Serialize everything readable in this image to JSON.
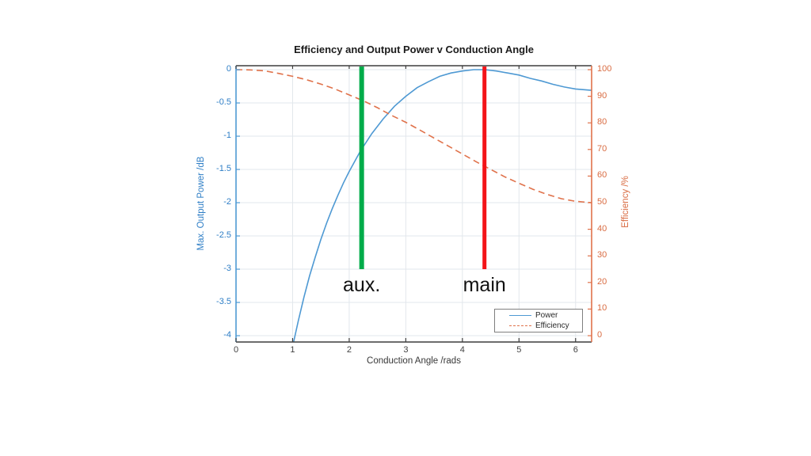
{
  "page": {
    "background": "#ffffff"
  },
  "chart_data": {
    "type": "line",
    "title": "Efficiency and Output Power v Conduction Angle",
    "xlabel": "Conduction Angle /rads",
    "ylabel_left": "Max. Output Power /dB",
    "ylabel_right": "Efficiency /%",
    "xlim": [
      0,
      6.2832
    ],
    "xticks": [
      0,
      1,
      2,
      3,
      4,
      5,
      6
    ],
    "ylim_left": [
      -4.095,
      0.06
    ],
    "yticks_left": [
      0,
      -0.5,
      -1,
      -1.5,
      -2,
      -2.5,
      -3,
      -3.5,
      -4
    ],
    "ytick_labels_left": [
      "0",
      "-0.5",
      "-1",
      "-1.5",
      "-2",
      "-2.5",
      "-3",
      "-3.5",
      "-4"
    ],
    "ylim_right": [
      -2.38,
      101.49
    ],
    "yticks_right": [
      100,
      90,
      80,
      70,
      60,
      50,
      40,
      30,
      20,
      10,
      0
    ],
    "grid": true,
    "legend": {
      "position": "bottom-right"
    },
    "series": [
      {
        "name": "Power",
        "axis": "left",
        "color": "#4e99d3",
        "style": "solid",
        "x": [
          1.0,
          1.1,
          1.2,
          1.3,
          1.4,
          1.5,
          1.6,
          1.7,
          1.8,
          1.9,
          2.0,
          2.2,
          2.4,
          2.6,
          2.8,
          3.0,
          3.2,
          3.4,
          3.6,
          3.8,
          4.0,
          4.2,
          4.4,
          4.6,
          4.8,
          5.0,
          5.2,
          5.4,
          5.6,
          5.8,
          6.0,
          6.28
        ],
        "y": [
          -4.16,
          -3.78,
          -3.42,
          -3.1,
          -2.82,
          -2.55,
          -2.31,
          -2.09,
          -1.89,
          -1.7,
          -1.53,
          -1.22,
          -0.96,
          -0.74,
          -0.55,
          -0.4,
          -0.27,
          -0.18,
          -0.1,
          -0.05,
          -0.02,
          0.0,
          0.0,
          -0.02,
          -0.05,
          -0.08,
          -0.13,
          -0.17,
          -0.22,
          -0.26,
          -0.29,
          -0.31
        ]
      },
      {
        "name": "Efficiency",
        "axis": "right",
        "color": "#e0724b",
        "style": "dashed",
        "x": [
          0,
          0.25,
          0.5,
          0.75,
          1.0,
          1.25,
          1.5,
          1.75,
          2.0,
          2.25,
          2.5,
          2.75,
          3.0,
          3.25,
          3.5,
          3.75,
          4.0,
          4.25,
          4.5,
          4.75,
          5.0,
          5.25,
          5.5,
          5.75,
          6.0,
          6.28
        ],
        "y": [
          100,
          99.9,
          99.6,
          98.6,
          97.5,
          96.2,
          94.6,
          92.7,
          90.5,
          88.3,
          85.7,
          82.8,
          80.2,
          77.3,
          74.3,
          71.3,
          68.3,
          65.3,
          62.5,
          59.7,
          57.3,
          55.0,
          53.1,
          51.5,
          50.5,
          50.0
        ]
      }
    ],
    "annotations": [
      {
        "type": "vline",
        "label": "aux.",
        "x": 2.22,
        "color": "#00ac4a",
        "bottom_db": -3,
        "width": 6
      },
      {
        "type": "vline",
        "label": "main",
        "x": 4.39,
        "color": "#f31419",
        "bottom_db": -3,
        "width": 5
      }
    ],
    "colors": {
      "left_axis": "#4e99d3",
      "left_text": "#2e7ec6",
      "right_axis": "#e0724b",
      "right_text": "#d96c42",
      "box": "#3d3d3d",
      "grid": "#e2e7ec",
      "x_tick_text": "#424242",
      "title_text": "#1b1b1b"
    }
  }
}
